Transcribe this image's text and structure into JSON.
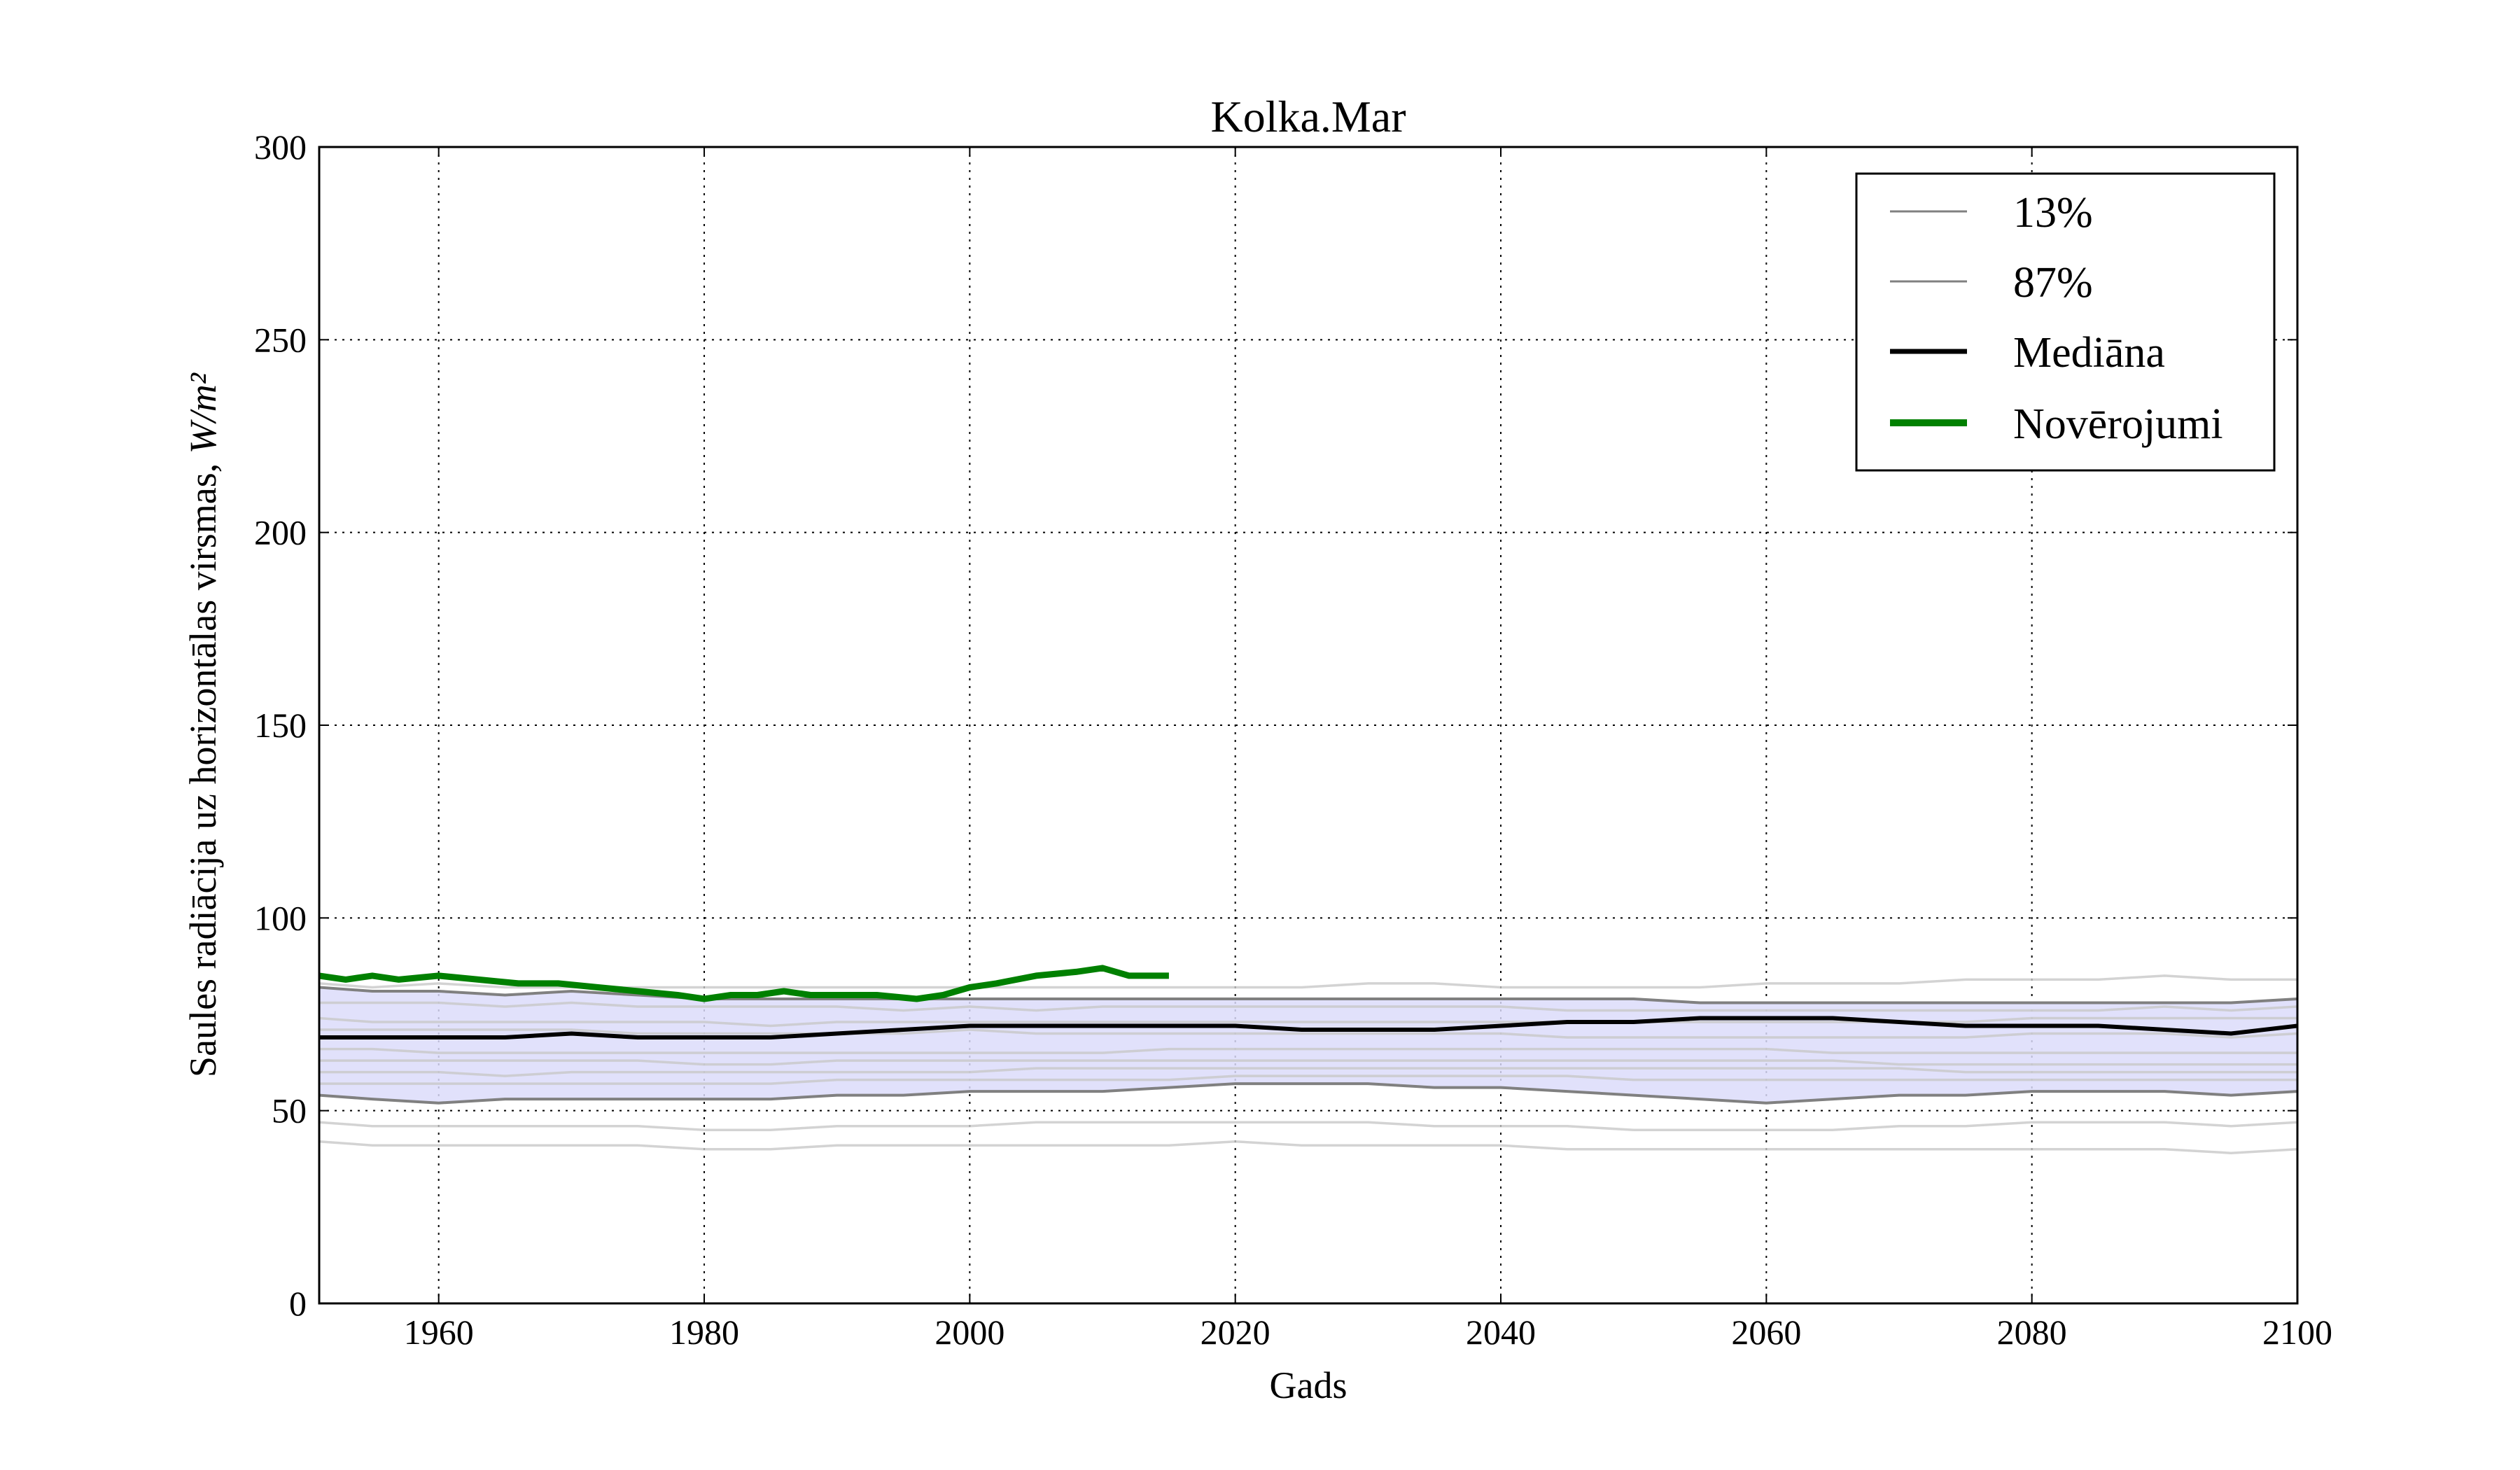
{
  "chart_data": {
    "type": "line",
    "title": "Kolka.Mar",
    "xlabel": "Gads",
    "ylabel": "Saules radiācija uz horizontālas virsmas, ",
    "ylabel_unit": "W/m²",
    "xlim": [
      1951,
      2100
    ],
    "ylim": [
      0,
      300
    ],
    "xticks": [
      1960,
      1980,
      2000,
      2020,
      2040,
      2060,
      2080,
      2100
    ],
    "yticks": [
      0,
      50,
      100,
      150,
      200,
      250,
      300
    ],
    "grid": true,
    "legend_position": "top-right",
    "shaded_band": {
      "lower": "13%",
      "upper": "87%",
      "color": "#dcdcfa"
    },
    "series": [
      {
        "name": "13%",
        "color": "#808080",
        "x": [
          1951,
          1955,
          1960,
          1965,
          1970,
          1975,
          1980,
          1985,
          1990,
          1995,
          2000,
          2005,
          2010,
          2015,
          2020,
          2025,
          2030,
          2035,
          2040,
          2045,
          2050,
          2055,
          2060,
          2065,
          2070,
          2075,
          2080,
          2085,
          2090,
          2095,
          2100
        ],
        "y": [
          54,
          53,
          52,
          53,
          53,
          53,
          53,
          53,
          54,
          54,
          55,
          55,
          55,
          56,
          57,
          57,
          57,
          56,
          56,
          55,
          54,
          53,
          52,
          53,
          54,
          54,
          55,
          55,
          55,
          54,
          55
        ]
      },
      {
        "name": "87%",
        "color": "#808080",
        "x": [
          1951,
          1955,
          1960,
          1965,
          1970,
          1975,
          1980,
          1985,
          1990,
          1995,
          2000,
          2005,
          2010,
          2015,
          2020,
          2025,
          2030,
          2035,
          2040,
          2045,
          2050,
          2055,
          2060,
          2065,
          2070,
          2075,
          2080,
          2085,
          2090,
          2095,
          2100
        ],
        "y": [
          82,
          81,
          81,
          80,
          81,
          80,
          79,
          79,
          79,
          79,
          79,
          79,
          79,
          79,
          79,
          79,
          79,
          79,
          79,
          79,
          79,
          78,
          78,
          78,
          78,
          78,
          78,
          78,
          78,
          78,
          79
        ]
      },
      {
        "name": "Mediāna",
        "color": "#000000",
        "x": [
          1951,
          1955,
          1960,
          1965,
          1970,
          1975,
          1980,
          1985,
          1990,
          1995,
          2000,
          2005,
          2010,
          2015,
          2020,
          2025,
          2030,
          2035,
          2040,
          2045,
          2050,
          2055,
          2060,
          2065,
          2070,
          2075,
          2080,
          2085,
          2090,
          2095,
          2100
        ],
        "y": [
          69,
          69,
          69,
          69,
          70,
          69,
          69,
          69,
          70,
          71,
          72,
          72,
          72,
          72,
          72,
          71,
          71,
          71,
          72,
          73,
          73,
          74,
          74,
          74,
          73,
          72,
          72,
          72,
          71,
          70,
          72
        ]
      },
      {
        "name": "Novērojumi",
        "color": "#008000",
        "x": [
          1951,
          1953,
          1955,
          1957,
          1960,
          1963,
          1966,
          1969,
          1972,
          1975,
          1978,
          1980,
          1982,
          1984,
          1986,
          1988,
          1990,
          1993,
          1996,
          1998,
          2000,
          2002,
          2005,
          2008,
          2010,
          2012,
          2015
        ],
        "y": [
          85,
          84,
          85,
          84,
          85,
          84,
          83,
          83,
          82,
          81,
          80,
          79,
          80,
          80,
          81,
          80,
          80,
          80,
          79,
          80,
          82,
          83,
          85,
          86,
          87,
          85,
          85
        ]
      }
    ],
    "ensemble_lines_gray": [
      [
        83,
        82,
        83,
        82,
        82,
        82,
        82,
        82,
        82,
        82,
        82,
        82,
        82,
        82,
        82,
        82,
        83,
        83,
        82,
        82,
        82,
        82,
        83,
        83,
        83,
        84,
        84,
        84,
        85,
        84,
        84
      ],
      [
        78,
        78,
        78,
        77,
        78,
        77,
        77,
        77,
        77,
        76,
        77,
        76,
        77,
        77,
        77,
        77,
        77,
        77,
        77,
        76,
        76,
        76,
        76,
        76,
        76,
        76,
        76,
        76,
        77,
        76,
        77
      ],
      [
        74,
        73,
        73,
        73,
        73,
        73,
        73,
        72,
        73,
        73,
        73,
        73,
        73,
        73,
        73,
        73,
        73,
        73,
        73,
        73,
        73,
        73,
        73,
        73,
        73,
        73,
        74,
        74,
        74,
        74,
        74
      ],
      [
        71,
        71,
        71,
        71,
        71,
        70,
        70,
        70,
        70,
        70,
        71,
        70,
        70,
        70,
        70,
        70,
        70,
        70,
        70,
        69,
        69,
        69,
        69,
        69,
        69,
        69,
        70,
        70,
        70,
        69,
        70
      ],
      [
        66,
        66,
        65,
        65,
        65,
        65,
        65,
        65,
        65,
        65,
        65,
        65,
        65,
        66,
        66,
        66,
        66,
        66,
        66,
        66,
        66,
        66,
        66,
        65,
        65,
        65,
        65,
        65,
        65,
        65,
        65
      ],
      [
        63,
        63,
        63,
        63,
        63,
        63,
        62,
        62,
        63,
        63,
        63,
        63,
        63,
        63,
        63,
        63,
        63,
        63,
        63,
        63,
        63,
        63,
        63,
        63,
        62,
        62,
        62,
        62,
        62,
        62,
        62
      ],
      [
        60,
        60,
        60,
        59,
        60,
        60,
        60,
        60,
        60,
        60,
        60,
        61,
        61,
        61,
        61,
        61,
        61,
        61,
        61,
        61,
        61,
        61,
        61,
        61,
        61,
        60,
        60,
        60,
        60,
        60,
        60
      ],
      [
        57,
        57,
        57,
        57,
        57,
        57,
        57,
        57,
        58,
        58,
        58,
        58,
        58,
        58,
        59,
        59,
        59,
        59,
        59,
        59,
        58,
        58,
        58,
        58,
        58,
        58,
        58,
        58,
        58,
        58,
        58
      ],
      [
        47,
        46,
        46,
        46,
        46,
        46,
        45,
        45,
        46,
        46,
        46,
        47,
        47,
        47,
        47,
        47,
        47,
        46,
        46,
        46,
        45,
        45,
        45,
        45,
        46,
        46,
        47,
        47,
        47,
        46,
        47
      ],
      [
        42,
        41,
        41,
        41,
        41,
        41,
        40,
        40,
        41,
        41,
        41,
        41,
        41,
        41,
        42,
        41,
        41,
        41,
        41,
        40,
        40,
        40,
        40,
        40,
        40,
        40,
        40,
        40,
        40,
        39,
        40
      ]
    ]
  }
}
